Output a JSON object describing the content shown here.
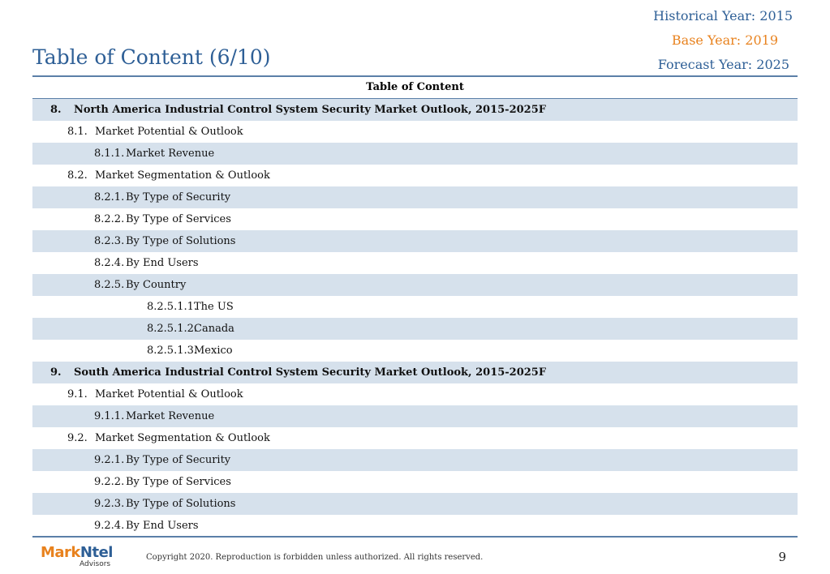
{
  "header": {
    "historical_year": "Historical Year: 2015",
    "base_year": "Base Year: 2019",
    "forecast_year": "Forecast Year: 2025",
    "title": "Table of Content (6/10)"
  },
  "toc": {
    "heading": "Table of Content",
    "rows": [
      {
        "num": "8.",
        "text": "North America Industrial Control System Security Market Outlook, 2015-2025F",
        "level": 0
      },
      {
        "num": "8.1.",
        "text": "Market Potential & Outlook",
        "level": 1
      },
      {
        "num": "8.1.1.",
        "text": "Market Revenue",
        "level": 2
      },
      {
        "num": "8.2.",
        "text": "Market Segmentation & Outlook",
        "level": 1
      },
      {
        "num": "8.2.1.",
        "text": "By Type of Security",
        "level": 2
      },
      {
        "num": "8.2.2.",
        "text": "By Type of Services",
        "level": 2
      },
      {
        "num": "8.2.3.",
        "text": "By Type of Solutions",
        "level": 2
      },
      {
        "num": "8.2.4.",
        "text": "By End Users",
        "level": 2
      },
      {
        "num": "8.2.5.",
        "text": "By Country",
        "level": 2
      },
      {
        "num": "8.2.5.1.1.",
        "text": "The US",
        "level": 3
      },
      {
        "num": "8.2.5.1.2.",
        "text": "Canada",
        "level": 3
      },
      {
        "num": "8.2.5.1.3.",
        "text": "Mexico",
        "level": 3
      },
      {
        "num": "9.",
        "text": "South America Industrial Control System Security Market Outlook, 2015-2025F",
        "level": 0
      },
      {
        "num": "9.1.",
        "text": "Market Potential & Outlook",
        "level": 1
      },
      {
        "num": "9.1.1.",
        "text": "Market Revenue",
        "level": 2
      },
      {
        "num": "9.2.",
        "text": "Market Segmentation & Outlook",
        "level": 1
      },
      {
        "num": "9.2.1.",
        "text": "By Type of Security",
        "level": 2
      },
      {
        "num": "9.2.2.",
        "text": "By Type of Services",
        "level": 2
      },
      {
        "num": "9.2.3.",
        "text": "By Type of Solutions",
        "level": 2
      },
      {
        "num": "9.2.4.",
        "text": "By End Users",
        "level": 2
      }
    ]
  },
  "footer": {
    "logo_part1": "Mark",
    "logo_part2": "Ntel",
    "logo_sub": "Advisors",
    "copyright": "Copyright 2020. Reproduction is forbidden unless authorized. All rights reserved.",
    "page_number": "9"
  },
  "colors": {
    "accent_blue": "#2e5f96",
    "accent_orange": "#e8821e",
    "row_alt": "#d6e1ec"
  }
}
